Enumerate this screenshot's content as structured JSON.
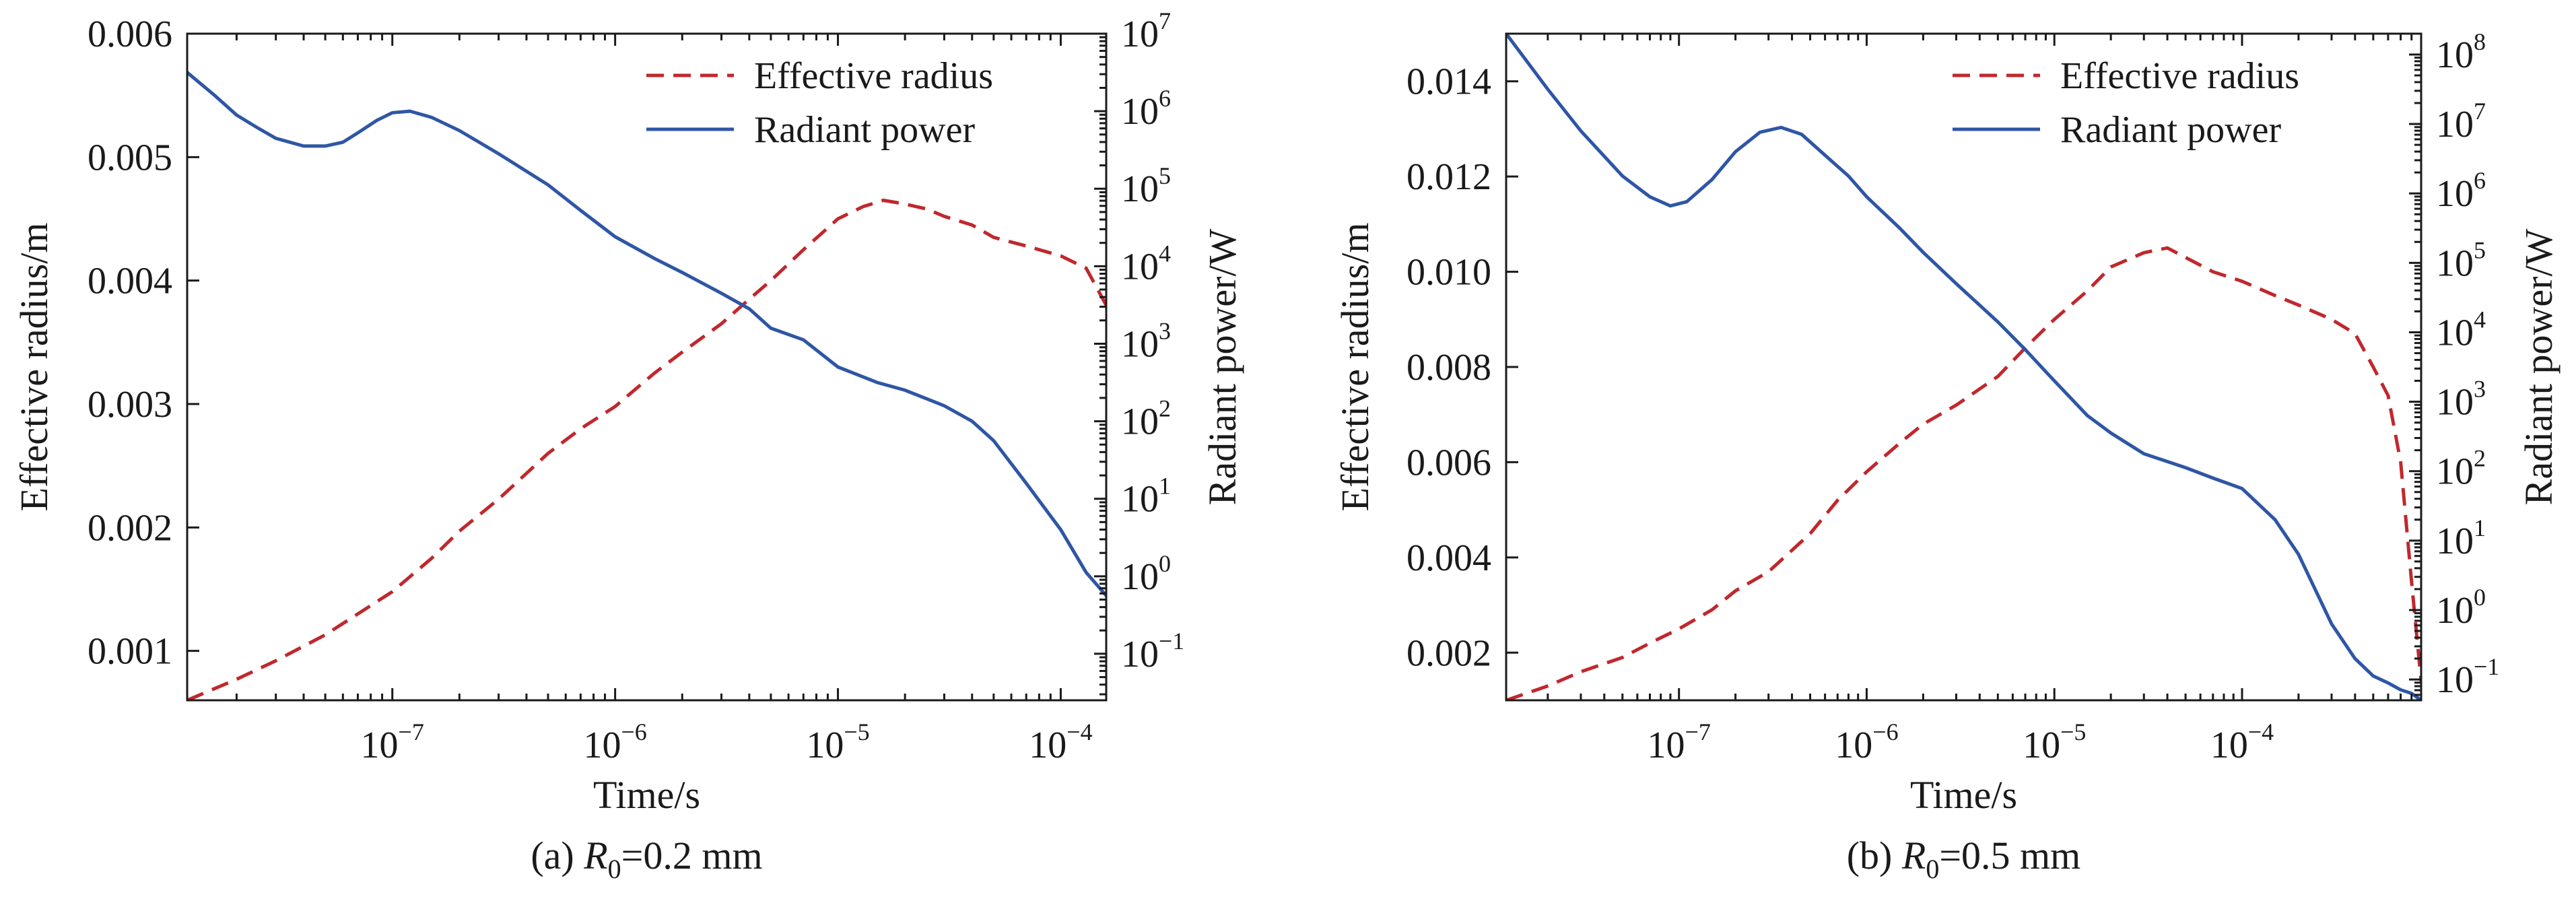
{
  "chart_data": [
    {
      "type": "line",
      "caption": "(a) R0=0.2 mm",
      "caption_prefix": "(a) ",
      "caption_symbol": "R",
      "caption_subscript": "0",
      "caption_suffix": "=0.2 mm",
      "xlabel": "Time/s",
      "ylabel_left": "Effective radius/m",
      "ylabel_right": "Radiant power/W",
      "x_scale": "log",
      "xlim": [
        1.2e-08,
        0.00016
      ],
      "x_ticks": [
        1e-07,
        1e-06,
        1e-05,
        0.0001
      ],
      "x_tick_labels": [
        "10",
        "10",
        "10",
        "10"
      ],
      "x_tick_exponents": [
        "−7",
        "−6",
        "−5",
        "−4"
      ],
      "ylim_left": [
        0.0006,
        0.006
      ],
      "y_ticks_left": [
        0.001,
        0.002,
        0.003,
        0.004,
        0.005,
        0.006
      ],
      "y_tick_labels_left": [
        "0.001",
        "0.002",
        "0.003",
        "0.004",
        "0.005",
        "0.006"
      ],
      "right_scale": "log",
      "ylim_right_log10": [
        -1.6,
        7
      ],
      "y_ticks_right_log10": [
        -1,
        0,
        1,
        2,
        3,
        4,
        5,
        6,
        7
      ],
      "y_tick_labels_right": [
        "10",
        "10",
        "10",
        "10",
        "10",
        "10",
        "10",
        "10",
        "10"
      ],
      "y_tick_exponents_right": [
        "−1",
        "0",
        "1",
        "2",
        "3",
        "4",
        "5",
        "6",
        "7"
      ],
      "legend": {
        "position": "top-right",
        "entries": [
          "Effective radius",
          "Radiant power"
        ]
      },
      "series": [
        {
          "name": "Effective radius",
          "axis": "left",
          "style": "dashed",
          "color": "#c0282d",
          "x": [
            1.2e-08,
            2e-08,
            3e-08,
            5e-08,
            7e-08,
            1e-07,
            1.5e-07,
            2e-07,
            3e-07,
            5e-07,
            7e-07,
            1e-06,
            1.5e-06,
            2e-06,
            3e-06,
            4e-06,
            5e-06,
            7e-06,
            1e-05,
            1.3e-05,
            1.6e-05,
            2e-05,
            2.5e-05,
            3e-05,
            4e-05,
            5e-05,
            7e-05,
            0.0001,
            0.00013,
            0.00016
          ],
          "y": [
            0.0006,
            0.00077,
            0.00092,
            0.00113,
            0.0013,
            0.00148,
            0.00175,
            0.00197,
            0.00223,
            0.0026,
            0.0028,
            0.00298,
            0.00325,
            0.00342,
            0.00365,
            0.00385,
            0.004,
            0.00425,
            0.0045,
            0.0046,
            0.00465,
            0.00462,
            0.00458,
            0.00452,
            0.00445,
            0.00435,
            0.00428,
            0.0042,
            0.0041,
            0.0038
          ]
        },
        {
          "name": "Radiant power",
          "axis": "right",
          "style": "solid",
          "color": "#2f56a5",
          "x": [
            1.2e-08,
            1.6e-08,
            2e-08,
            2.5e-08,
            3e-08,
            4e-08,
            5e-08,
            6e-08,
            7e-08,
            8.5e-08,
            1e-07,
            1.2e-07,
            1.5e-07,
            2e-07,
            3e-07,
            5e-07,
            7e-07,
            1e-06,
            1.5e-06,
            2e-06,
            3e-06,
            4e-06,
            5e-06,
            7e-06,
            1e-05,
            1.5e-05,
            2e-05,
            3e-05,
            4e-05,
            5e-05,
            7e-05,
            0.0001,
            0.00013,
            0.00016
          ],
          "log10_y": [
            6.5,
            6.2,
            5.95,
            5.78,
            5.65,
            5.55,
            5.55,
            5.6,
            5.72,
            5.88,
            5.98,
            6.0,
            5.92,
            5.75,
            5.45,
            5.05,
            4.72,
            4.38,
            4.1,
            3.92,
            3.65,
            3.45,
            3.2,
            3.05,
            2.7,
            2.5,
            2.4,
            2.2,
            2.0,
            1.75,
            1.2,
            0.6,
            0.05,
            -0.25
          ]
        }
      ]
    },
    {
      "type": "line",
      "caption": "(b) R0=0.5 mm",
      "caption_prefix": "(b) ",
      "caption_symbol": "R",
      "caption_subscript": "0",
      "caption_suffix": "=0.5 mm",
      "xlabel": "Time/s",
      "ylabel_left": "Effective radius/m",
      "ylabel_right": "Radiant power/W",
      "x_scale": "log",
      "xlim": [
        1.2e-08,
        0.0009
      ],
      "x_ticks": [
        1e-07,
        1e-06,
        1e-05,
        0.0001
      ],
      "x_tick_labels": [
        "10",
        "10",
        "10",
        "10"
      ],
      "x_tick_exponents": [
        "−7",
        "−6",
        "−5",
        "−4"
      ],
      "ylim_left": [
        0.001,
        0.015
      ],
      "y_ticks_left": [
        0.002,
        0.004,
        0.006,
        0.008,
        0.01,
        0.012,
        0.014
      ],
      "y_tick_labels_left": [
        "0.002",
        "0.004",
        "0.006",
        "0.008",
        "0.010",
        "0.012",
        "0.014"
      ],
      "right_scale": "log",
      "ylim_right_log10": [
        -1.3,
        8.3
      ],
      "y_ticks_right_log10": [
        -1,
        0,
        1,
        2,
        3,
        4,
        5,
        6,
        7,
        8
      ],
      "y_tick_labels_right": [
        "10",
        "10",
        "10",
        "10",
        "10",
        "10",
        "10",
        "10",
        "10",
        "10"
      ],
      "y_tick_exponents_right": [
        "−1",
        "0",
        "1",
        "2",
        "3",
        "4",
        "5",
        "6",
        "7",
        "8"
      ],
      "legend": {
        "position": "top-right",
        "entries": [
          "Effective radius",
          "Radiant power"
        ]
      },
      "series": [
        {
          "name": "Effective radius",
          "axis": "left",
          "style": "dashed",
          "color": "#c0282d",
          "x": [
            1.2e-08,
            2e-08,
            3e-08,
            5e-08,
            7e-08,
            1e-07,
            1.5e-07,
            2e-07,
            3e-07,
            5e-07,
            7e-07,
            1e-06,
            1.5e-06,
            2e-06,
            3e-06,
            5e-06,
            7e-06,
            1e-05,
            1.5e-05,
            2e-05,
            3e-05,
            4e-05,
            5e-05,
            7e-05,
            0.0001,
            0.00015,
            0.0002,
            0.0003,
            0.0004,
            0.0005,
            0.0006,
            0.0007,
            0.0008,
            0.0009
          ],
          "y": [
            0.001,
            0.0013,
            0.0016,
            0.0019,
            0.0022,
            0.0025,
            0.0029,
            0.0033,
            0.0037,
            0.0045,
            0.0052,
            0.0058,
            0.0064,
            0.0068,
            0.0072,
            0.0078,
            0.0084,
            0.009,
            0.0096,
            0.0101,
            0.0104,
            0.0105,
            0.0103,
            0.01,
            0.0098,
            0.0095,
            0.0093,
            0.009,
            0.0087,
            0.008,
            0.0074,
            0.006,
            0.0035,
            0.0014
          ]
        },
        {
          "name": "Radiant power",
          "axis": "right",
          "style": "solid",
          "color": "#2f56a5",
          "x": [
            1.2e-08,
            2e-08,
            3e-08,
            5e-08,
            7e-08,
            9e-08,
            1.1e-07,
            1.5e-07,
            2e-07,
            2.7e-07,
            3.5e-07,
            4.5e-07,
            6e-07,
            8e-07,
            1e-06,
            1.5e-06,
            2e-06,
            3e-06,
            5e-06,
            7e-06,
            1e-05,
            1.5e-05,
            2e-05,
            3e-05,
            5e-05,
            7e-05,
            0.0001,
            0.00015,
            0.0002,
            0.0003,
            0.0004,
            0.0005,
            0.0006,
            0.0007,
            0.0008,
            0.0009
          ],
          "log10_y": [
            8.3,
            7.5,
            6.9,
            6.25,
            5.95,
            5.82,
            5.88,
            6.2,
            6.6,
            6.88,
            6.95,
            6.85,
            6.55,
            6.25,
            5.95,
            5.5,
            5.15,
            4.7,
            4.15,
            3.75,
            3.3,
            2.8,
            2.55,
            2.25,
            2.05,
            1.9,
            1.75,
            1.3,
            0.8,
            -0.2,
            -0.7,
            -0.95,
            -1.05,
            -1.15,
            -1.2,
            -1.3
          ]
        }
      ]
    }
  ]
}
